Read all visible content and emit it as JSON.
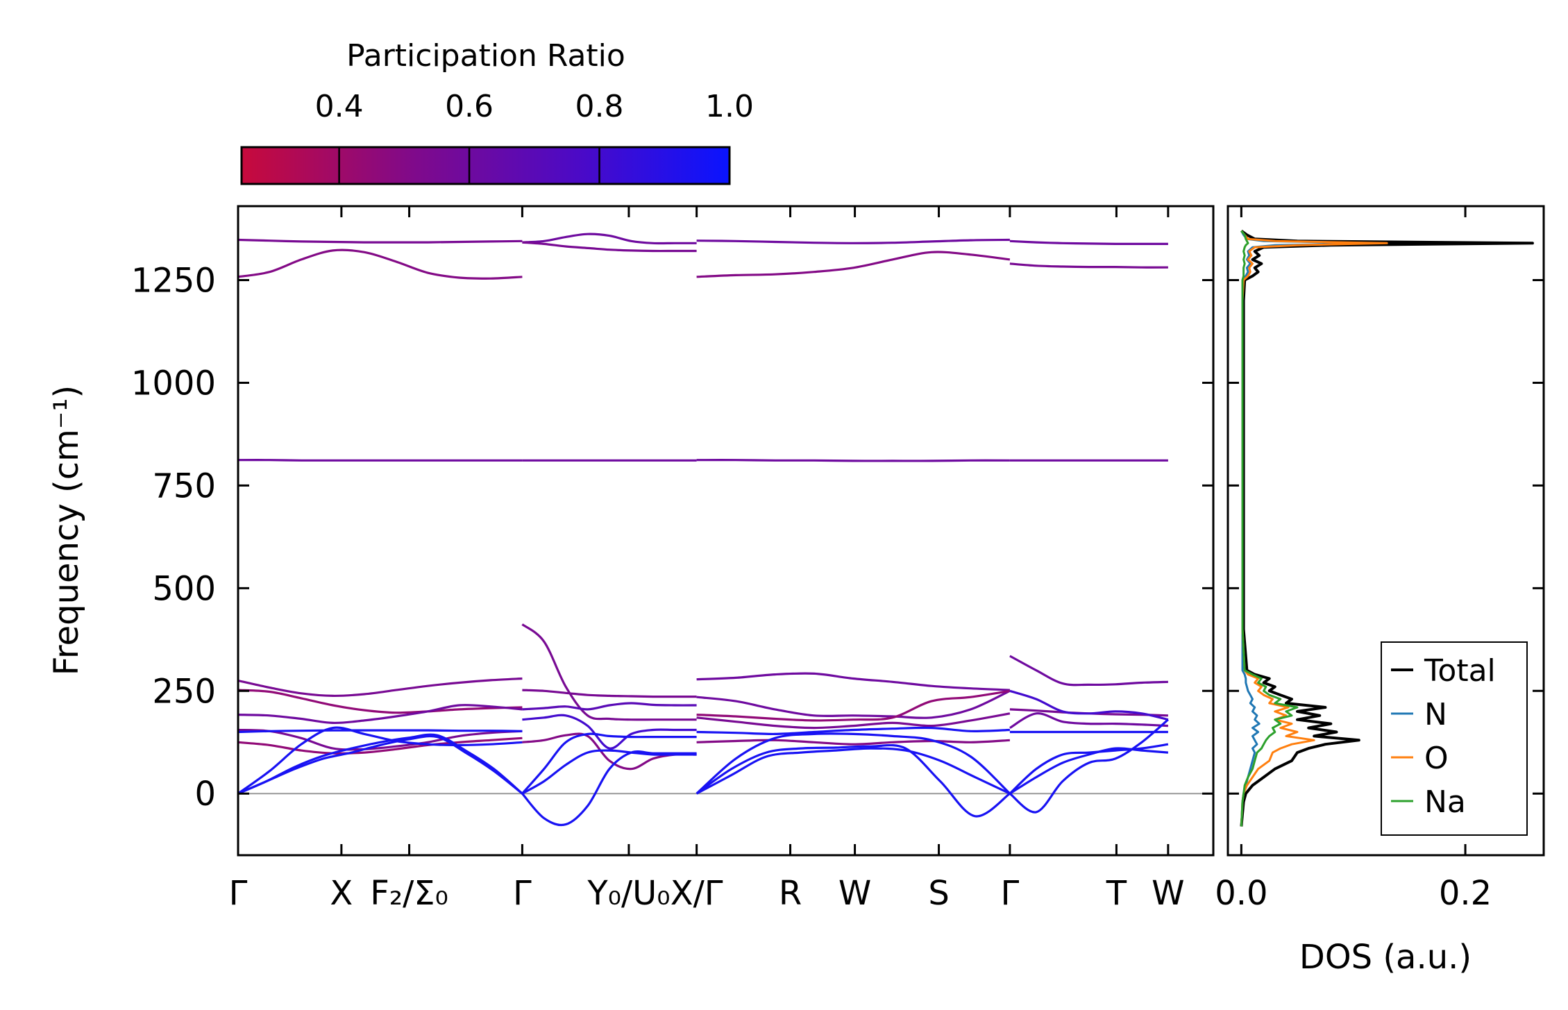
{
  "colorbar": {
    "title": "Participation Ratio",
    "vmin": 0.25,
    "vmax": 1.0,
    "ticks": [
      0.4,
      0.6,
      0.8,
      1.0
    ],
    "tick_labels": [
      "0.4",
      "0.6",
      "0.8",
      "1.0"
    ],
    "colors": [
      "#c70a3c",
      "#0a14ff"
    ]
  },
  "chart_data": [
    {
      "type": "line",
      "name": "phonon-band-structure",
      "ylabel": "Frequency (cm⁻¹)",
      "ylim": [
        -150,
        1430
      ],
      "yticks": [
        0,
        250,
        500,
        750,
        1000,
        1250
      ],
      "ytick_labels": [
        "0",
        "250",
        "500",
        "750",
        "1000",
        "1250"
      ],
      "xlim": [
        0,
        15.1
      ],
      "ticks": [
        {
          "x": 0.0,
          "label": "Γ"
        },
        {
          "x": 1.6,
          "label": "X"
        },
        {
          "x": 2.65,
          "label": "F₂/Σ₀"
        },
        {
          "x": 4.4,
          "label": "Γ"
        },
        {
          "x": 6.05,
          "label": "Y₀/U₀"
        },
        {
          "x": 7.1,
          "label": "X/Γ"
        },
        {
          "x": 8.55,
          "label": "R"
        },
        {
          "x": 9.55,
          "label": "W"
        },
        {
          "x": 10.85,
          "label": "S"
        },
        {
          "x": 11.95,
          "label": "Γ"
        },
        {
          "x": 13.6,
          "label": "T"
        },
        {
          "x": 14.4,
          "label": "W"
        }
      ],
      "segments": [
        [
          0,
          4.4
        ],
        [
          4.4,
          7.1
        ],
        [
          7.1,
          11.95
        ],
        [
          11.95,
          14.4
        ]
      ],
      "bands": [
        {
          "seg": 0,
          "pr": 0.55,
          "y": [
            1348,
            1346,
            1344,
            1343,
            1342,
            1342,
            1342,
            1343,
            1344,
            1345
          ]
        },
        {
          "seg": 0,
          "pr": 0.5,
          "y": [
            1258,
            1270,
            1300,
            1322,
            1318,
            1295,
            1268,
            1256,
            1254,
            1258
          ]
        },
        {
          "seg": 0,
          "pr": 0.6,
          "y": [
            812,
            812,
            811,
            811,
            811,
            811,
            811,
            811,
            811,
            811
          ]
        },
        {
          "seg": 0,
          "pr": 0.55,
          "y": [
            275,
            258,
            244,
            238,
            242,
            252,
            262,
            270,
            276,
            280
          ]
        },
        {
          "seg": 0,
          "pr": 0.45,
          "y": [
            252,
            248,
            232,
            215,
            203,
            197,
            200,
            205,
            208,
            210
          ]
        },
        {
          "seg": 0,
          "pr": 0.6,
          "y": [
            192,
            190,
            182,
            172,
            178,
            188,
            200,
            215,
            212,
            205
          ]
        },
        {
          "seg": 0,
          "pr": 0.55,
          "y": [
            155,
            152,
            135,
            110,
            108,
            115,
            125,
            140,
            148,
            152
          ]
        },
        {
          "seg": 0,
          "pr": 0.95,
          "y": [
            150,
            152,
            153,
            154,
            154,
            154,
            154,
            153,
            153,
            152
          ]
        },
        {
          "seg": 0,
          "pr": 0.45,
          "y": [
            125,
            118,
            105,
            98,
            100,
            108,
            118,
            125,
            130,
            135
          ]
        },
        {
          "seg": 0,
          "pr": 0.95,
          "y": [
            0,
            55,
            120,
            160,
            145,
            128,
            120,
            118,
            120,
            125
          ]
        },
        {
          "seg": 0,
          "pr": 0.95,
          "y": [
            0,
            30,
            65,
            92,
            110,
            125,
            136,
            142,
            105,
            60,
            0
          ]
        },
        {
          "seg": 0,
          "pr": 0.95,
          "y": [
            0,
            30,
            60,
            85,
            100,
            118,
            132,
            138,
            100,
            55,
            0
          ]
        },
        {
          "seg": 1,
          "pr": 0.6,
          "y": [
            1342,
            1345,
            1355,
            1362,
            1358,
            1345,
            1340,
            1340,
            1340
          ]
        },
        {
          "seg": 1,
          "pr": 0.55,
          "y": [
            1342,
            1338,
            1332,
            1328,
            1324,
            1322,
            1321,
            1321,
            1321
          ]
        },
        {
          "seg": 1,
          "pr": 0.6,
          "y": [
            811,
            811,
            811,
            811,
            811,
            811,
            811,
            811,
            811
          ]
        },
        {
          "seg": 1,
          "pr": 0.55,
          "y": [
            412,
            370,
            260,
            190,
            182,
            180,
            180,
            180,
            180
          ]
        },
        {
          "seg": 1,
          "pr": 0.55,
          "y": [
            252,
            250,
            245,
            240,
            238,
            237,
            236,
            236,
            236
          ]
        },
        {
          "seg": 1,
          "pr": 0.7,
          "y": [
            205,
            208,
            212,
            205,
            215,
            220,
            216,
            215,
            215
          ]
        },
        {
          "seg": 1,
          "pr": 0.8,
          "y": [
            180,
            185,
            190,
            165,
            110,
            145,
            155,
            155,
            155
          ]
        },
        {
          "seg": 1,
          "pr": 0.5,
          "y": [
            125,
            130,
            142,
            140,
            80,
            60,
            85,
            95,
            95
          ]
        },
        {
          "seg": 1,
          "pr": 0.95,
          "y": [
            0,
            60,
            125,
            145,
            140,
            138,
            138,
            138,
            138
          ]
        },
        {
          "seg": 1,
          "pr": 0.95,
          "y": [
            0,
            -60,
            -75,
            -30,
            60,
            100,
            98,
            98,
            98
          ]
        },
        {
          "seg": 1,
          "pr": 0.95,
          "y": [
            0,
            30,
            70,
            100,
            105,
            100,
            95,
            95,
            95
          ]
        },
        {
          "seg": 2,
          "pr": 0.6,
          "y": [
            1346,
            1345,
            1343,
            1341,
            1340,
            1341,
            1344,
            1347,
            1348
          ]
        },
        {
          "seg": 2,
          "pr": 0.5,
          "y": [
            1258,
            1262,
            1264,
            1270,
            1280,
            1300,
            1318,
            1312,
            1300
          ]
        },
        {
          "seg": 2,
          "pr": 0.6,
          "y": [
            812,
            812,
            811,
            811,
            810,
            810,
            810,
            811,
            811
          ]
        },
        {
          "seg": 2,
          "pr": 0.6,
          "y": [
            278,
            282,
            290,
            292,
            280,
            272,
            262,
            256,
            252
          ]
        },
        {
          "seg": 2,
          "pr": 0.6,
          "y": [
            235,
            225,
            205,
            190,
            190,
            188,
            185,
            205,
            250
          ]
        },
        {
          "seg": 2,
          "pr": 0.45,
          "y": [
            192,
            188,
            182,
            178,
            180,
            185,
            225,
            235,
            250
          ]
        },
        {
          "seg": 2,
          "pr": 0.55,
          "y": [
            185,
            175,
            165,
            160,
            165,
            172,
            165,
            178,
            195
          ]
        },
        {
          "seg": 2,
          "pr": 0.95,
          "y": [
            150,
            148,
            145,
            150,
            155,
            158,
            160,
            152,
            155
          ]
        },
        {
          "seg": 2,
          "pr": 0.5,
          "y": [
            125,
            128,
            130,
            125,
            120,
            125,
            128,
            125,
            130
          ]
        },
        {
          "seg": 2,
          "pr": 0.95,
          "y": [
            0,
            85,
            135,
            145,
            145,
            140,
            130,
            90,
            0
          ]
        },
        {
          "seg": 2,
          "pr": 0.95,
          "y": [
            0,
            60,
            100,
            110,
            112,
            115,
            110,
            30,
            -55,
            0
          ]
        },
        {
          "seg": 2,
          "pr": 0.95,
          "y": [
            0,
            45,
            90,
            100,
            105,
            110,
            105,
            80,
            40,
            0
          ]
        },
        {
          "seg": 3,
          "pr": 0.55,
          "y": [
            1290,
            1285,
            1283,
            1282,
            1282,
            1281,
            1281
          ]
        },
        {
          "seg": 3,
          "pr": 0.6,
          "y": [
            1345,
            1342,
            1340,
            1339,
            1338,
            1338,
            1338
          ]
        },
        {
          "seg": 3,
          "pr": 0.6,
          "y": [
            811,
            811,
            811,
            811,
            811,
            811,
            811
          ]
        },
        {
          "seg": 3,
          "pr": 0.6,
          "y": [
            335,
            300,
            268,
            265,
            266,
            270,
            272
          ]
        },
        {
          "seg": 3,
          "pr": 0.55,
          "y": [
            205,
            202,
            198,
            195,
            193,
            192,
            190
          ]
        },
        {
          "seg": 3,
          "pr": 0.8,
          "y": [
            250,
            230,
            200,
            195,
            200,
            195,
            180
          ]
        },
        {
          "seg": 3,
          "pr": 0.6,
          "y": [
            160,
            195,
            175,
            170,
            170,
            168,
            165
          ]
        },
        {
          "seg": 3,
          "pr": 0.95,
          "y": [
            150,
            150,
            150,
            150,
            150,
            150,
            150
          ]
        },
        {
          "seg": 3,
          "pr": 0.95,
          "y": [
            0,
            -45,
            30,
            75,
            85,
            125,
            180
          ]
        },
        {
          "seg": 3,
          "pr": 0.95,
          "y": [
            0,
            40,
            75,
            95,
            110,
            105,
            100
          ]
        },
        {
          "seg": 3,
          "pr": 0.95,
          "y": [
            0,
            60,
            95,
            100,
            105,
            110,
            120
          ]
        }
      ]
    },
    {
      "type": "line",
      "name": "density-of-states",
      "xlabel": "DOS (a.u.)",
      "xlim": [
        -0.012,
        0.27
      ],
      "xticks": [
        0.0,
        0.2
      ],
      "xtick_labels": [
        "0.0",
        "0.2"
      ],
      "ylim": [
        -150,
        1430
      ],
      "legend": {
        "position": "lower-right",
        "entries": [
          "Total",
          "N",
          "O",
          "Na"
        ]
      },
      "y": [
        -80,
        -20,
        0,
        20,
        40,
        60,
        80,
        100,
        110,
        120,
        130,
        140,
        150,
        160,
        170,
        180,
        190,
        200,
        210,
        220,
        230,
        240,
        250,
        260,
        270,
        280,
        290,
        300,
        400,
        600,
        800,
        1000,
        1200,
        1250,
        1260,
        1270,
        1280,
        1290,
        1300,
        1310,
        1320,
        1330,
        1335,
        1340,
        1345,
        1350,
        1360,
        1370
      ],
      "series": [
        {
          "name": "Total",
          "color": "#000000",
          "values": [
            0,
            0.002,
            0.004,
            0.01,
            0.02,
            0.03,
            0.045,
            0.05,
            0.06,
            0.075,
            0.105,
            0.065,
            0.085,
            0.06,
            0.08,
            0.05,
            0.07,
            0.05,
            0.075,
            0.04,
            0.045,
            0.035,
            0.025,
            0.03,
            0.02,
            0.025,
            0.012,
            0.005,
            0.002,
            0.002,
            0.002,
            0.002,
            0.002,
            0.003,
            0.01,
            0.015,
            0.012,
            0.018,
            0.01,
            0.016,
            0.012,
            0.02,
            0.08,
            0.26,
            0.05,
            0.012,
            0.005,
            0.0
          ]
        },
        {
          "name": "N",
          "color": "#1f77b4",
          "values": [
            0,
            0.001,
            0.002,
            0.004,
            0.006,
            0.008,
            0.01,
            0.012,
            0.01,
            0.014,
            0.012,
            0.01,
            0.015,
            0.01,
            0.016,
            0.012,
            0.014,
            0.01,
            0.012,
            0.008,
            0.01,
            0.008,
            0.006,
            0.005,
            0.004,
            0.004,
            0.003,
            0.001,
            0.001,
            0.001,
            0.001,
            0.001,
            0.001,
            0.001,
            0.004,
            0.006,
            0.005,
            0.008,
            0.005,
            0.007,
            0.006,
            0.01,
            0.03,
            0.12,
            0.02,
            0.005,
            0.002,
            0.0
          ]
        },
        {
          "name": "O",
          "color": "#ff7f0e",
          "values": [
            0,
            0.001,
            0.002,
            0.005,
            0.01,
            0.015,
            0.025,
            0.028,
            0.035,
            0.045,
            0.065,
            0.04,
            0.05,
            0.035,
            0.045,
            0.03,
            0.04,
            0.03,
            0.042,
            0.025,
            0.028,
            0.02,
            0.015,
            0.018,
            0.012,
            0.015,
            0.006,
            0.003,
            0.001,
            0.001,
            0.001,
            0.001,
            0.001,
            0.002,
            0.006,
            0.008,
            0.007,
            0.01,
            0.006,
            0.009,
            0.007,
            0.012,
            0.05,
            0.13,
            0.03,
            0.006,
            0.003,
            0.0
          ]
        },
        {
          "name": "Na",
          "color": "#2ca02c",
          "values": [
            0,
            0.001,
            0.002,
            0.003,
            0.006,
            0.01,
            0.012,
            0.014,
            0.018,
            0.02,
            0.022,
            0.025,
            0.03,
            0.028,
            0.035,
            0.03,
            0.045,
            0.04,
            0.05,
            0.03,
            0.035,
            0.025,
            0.02,
            0.022,
            0.015,
            0.018,
            0.01,
            0.003,
            0.001,
            0.001,
            0.001,
            0.001,
            0.001,
            0.001,
            0.002,
            0.002,
            0.002,
            0.003,
            0.002,
            0.003,
            0.002,
            0.003,
            0.004,
            0.006,
            0.005,
            0.004,
            0.003,
            0.0
          ]
        }
      ]
    }
  ]
}
